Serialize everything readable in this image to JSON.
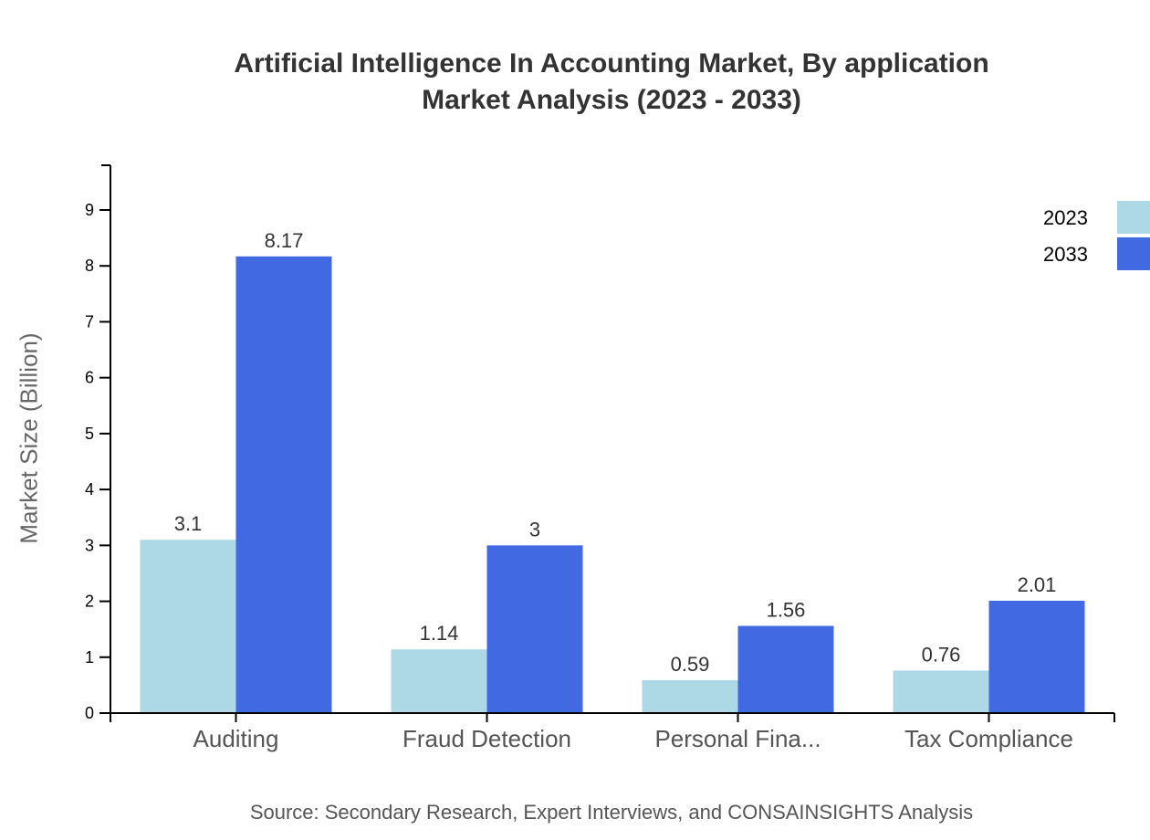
{
  "title": {
    "line1": "Artificial Intelligence In Accounting Market, By application",
    "line2": "Market Analysis (2023 - 2033)"
  },
  "ylabel": "Market Size (Billion)",
  "source": "Source: Secondary Research, Expert Interviews, and CONSAINSIGHTS Analysis",
  "legend": [
    {
      "label": "2023",
      "color": "#add8e6"
    },
    {
      "label": "2033",
      "color": "#4169e1"
    }
  ],
  "chart_data": {
    "type": "bar",
    "title": "Artificial Intelligence In Accounting Market, By application Market Analysis (2023 - 2033)",
    "xlabel": "",
    "ylabel": "Market Size (Billion)",
    "categories": [
      "Auditing",
      "Fraud Detection",
      "Personal Fina...",
      "Tax Compliance"
    ],
    "series": [
      {
        "name": "2023",
        "color": "#add8e6",
        "values": [
          3.1,
          1.14,
          0.59,
          0.76
        ]
      },
      {
        "name": "2033",
        "color": "#4169e1",
        "values": [
          8.17,
          3,
          1.56,
          2.01
        ]
      }
    ],
    "yticks": [
      0,
      1,
      2,
      3,
      4,
      5,
      6,
      7,
      8,
      9
    ],
    "ylim": [
      0,
      9.8
    ],
    "grid": false,
    "legend_position": "top-right"
  }
}
